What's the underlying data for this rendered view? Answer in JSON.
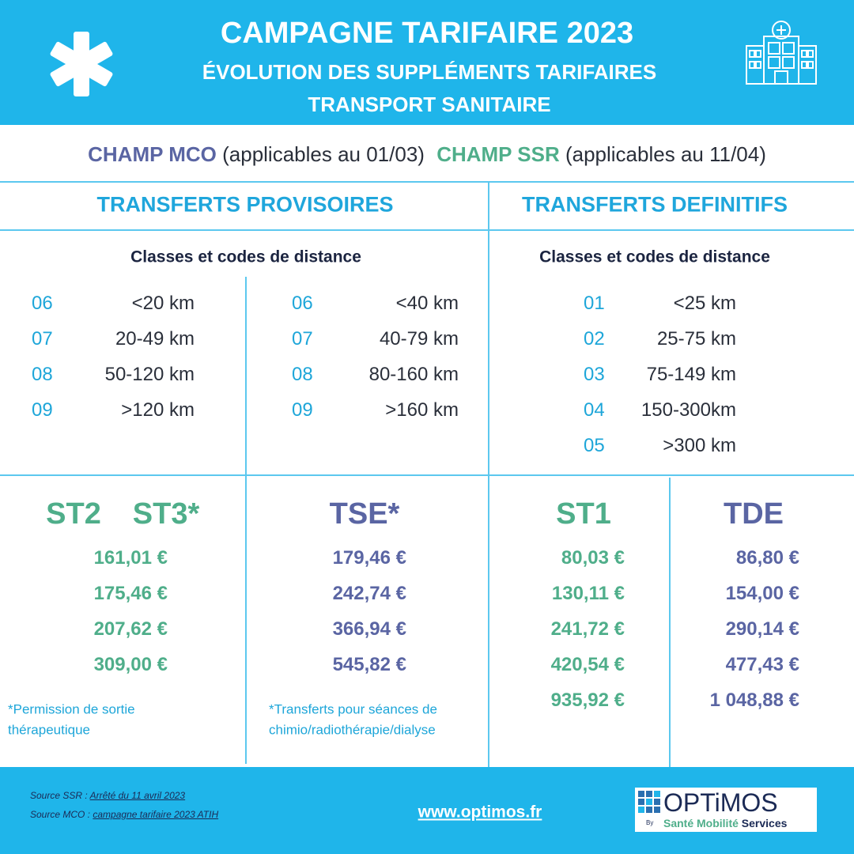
{
  "header": {
    "title": "CAMPAGNE TARIFAIRE 2023",
    "subtitle": "ÉVOLUTION DES SUPPLÉMENTS TARIFAIRES",
    "subtitle2": "TRANSPORT SANITAIRE"
  },
  "scope": {
    "mco_label": "CHAMP MCO",
    "mco_note": "(applicables au 01/03)",
    "ssr_label": "CHAMP SSR",
    "ssr_note": "(applicables au 11/04)"
  },
  "sections": {
    "provisional": "TRANSFERTS PROVISOIRES",
    "definitive": "TRANSFERTS DEFINITIFS"
  },
  "distance_headings": [
    "Classes et codes de distance",
    "Classes et codes de distance"
  ],
  "distance_tables": [
    {
      "rows": [
        [
          "06",
          "<20 km"
        ],
        [
          "07",
          "20-49 km"
        ],
        [
          "08",
          "50-120 km"
        ],
        [
          "09",
          ">120 km"
        ]
      ]
    },
    {
      "rows": [
        [
          "06",
          "<40 km"
        ],
        [
          "07",
          "40-79 km"
        ],
        [
          "08",
          "80-160 km"
        ],
        [
          "09",
          ">160 km"
        ]
      ]
    },
    {
      "rows": [
        [
          "01",
          "<25 km"
        ],
        [
          "02",
          "25-75 km"
        ],
        [
          "03",
          "75-149 km"
        ],
        [
          "04",
          "150-300km"
        ],
        [
          "05",
          ">300 km"
        ]
      ]
    }
  ],
  "tariffs": [
    {
      "headings": [
        "ST2",
        "ST3*"
      ],
      "values": [
        "161,01 €",
        "175,46 €",
        "207,62 €",
        "309,00 €"
      ]
    },
    {
      "headings": [
        "TSE*"
      ],
      "values": [
        "179,46 €",
        "242,74 €",
        "366,94 €",
        "545,82 €"
      ]
    },
    {
      "headings": [
        "ST1"
      ],
      "values": [
        "80,03 €",
        "130,11 €",
        "241,72 €",
        "420,54 €",
        "935,92 €"
      ]
    },
    {
      "headings": [
        "TDE"
      ],
      "values": [
        "86,80 €",
        "154,00 €",
        "290,14 €",
        "477,43 €",
        "1 048,88 €"
      ]
    }
  ],
  "footnotes": [
    [
      "*Permission de sortie",
      "thérapeutique"
    ],
    [
      "*Transferts pour séances de",
      "chimio/radiothérapie/dialyse"
    ]
  ],
  "footer": {
    "source_ssr_label": "Source SSR :",
    "source_ssr_link": "Arrêté du 11 avril 2023",
    "source_mco_label": "Source MCO :",
    "source_mco_link": "campagne tarifaire 2023 ATIH",
    "url": "www.optimos.fr",
    "logo_name": "OPTiMOS",
    "logo_by": "By",
    "logo_tagline_1": "Santé Mobilité",
    "logo_tagline_2": "Services"
  }
}
